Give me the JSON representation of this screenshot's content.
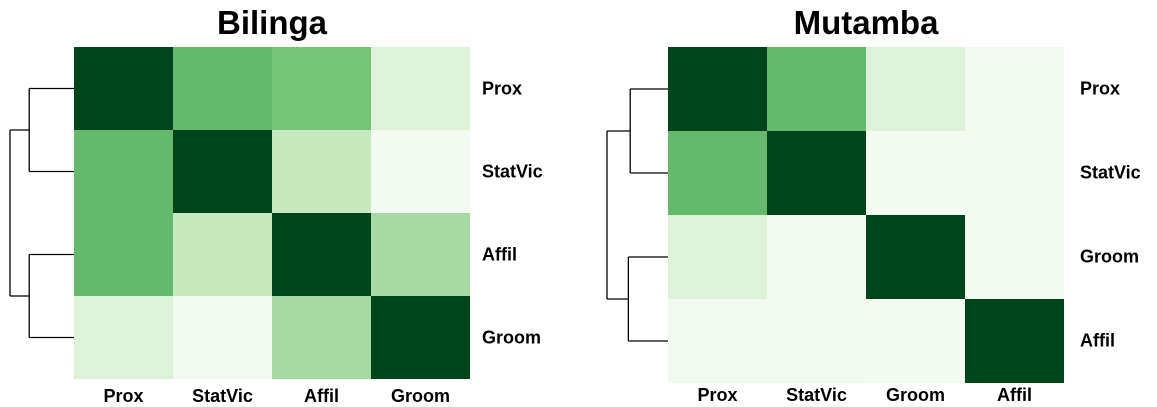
{
  "chart_data": [
    {
      "type": "heatmap",
      "title": "Bilinga",
      "rows": [
        "Prox",
        "StatVic",
        "Affil",
        "Groom"
      ],
      "columns": [
        "Prox",
        "StatVic",
        "Affil",
        "Groom"
      ],
      "values": [
        [
          1.0,
          0.55,
          0.5,
          0.13
        ],
        [
          0.55,
          1.0,
          0.25,
          0.02
        ],
        [
          0.55,
          0.25,
          1.0,
          0.35
        ],
        [
          0.13,
          0.03,
          0.35,
          1.0
        ]
      ],
      "colorscale": [
        "#f7fcf5",
        "#c7e9c0",
        "#74c476",
        "#238b45",
        "#00441b"
      ],
      "dendrogram": "rows",
      "grid": false
    },
    {
      "type": "heatmap",
      "title": "Mutamba",
      "rows": [
        "Prox",
        "StatVic",
        "Groom",
        "Affil"
      ],
      "columns": [
        "Prox",
        "StatVic",
        "Groom",
        "Affil"
      ],
      "values": [
        [
          1.0,
          0.55,
          0.13,
          0.03
        ],
        [
          0.55,
          1.0,
          0.02,
          0.02
        ],
        [
          0.13,
          0.02,
          1.0,
          0.02
        ],
        [
          0.03,
          0.03,
          0.02,
          1.0
        ]
      ],
      "colorscale": [
        "#f7fcf5",
        "#c7e9c0",
        "#74c476",
        "#238b45",
        "#00441b"
      ],
      "dendrogram": "rows",
      "grid": false
    }
  ]
}
